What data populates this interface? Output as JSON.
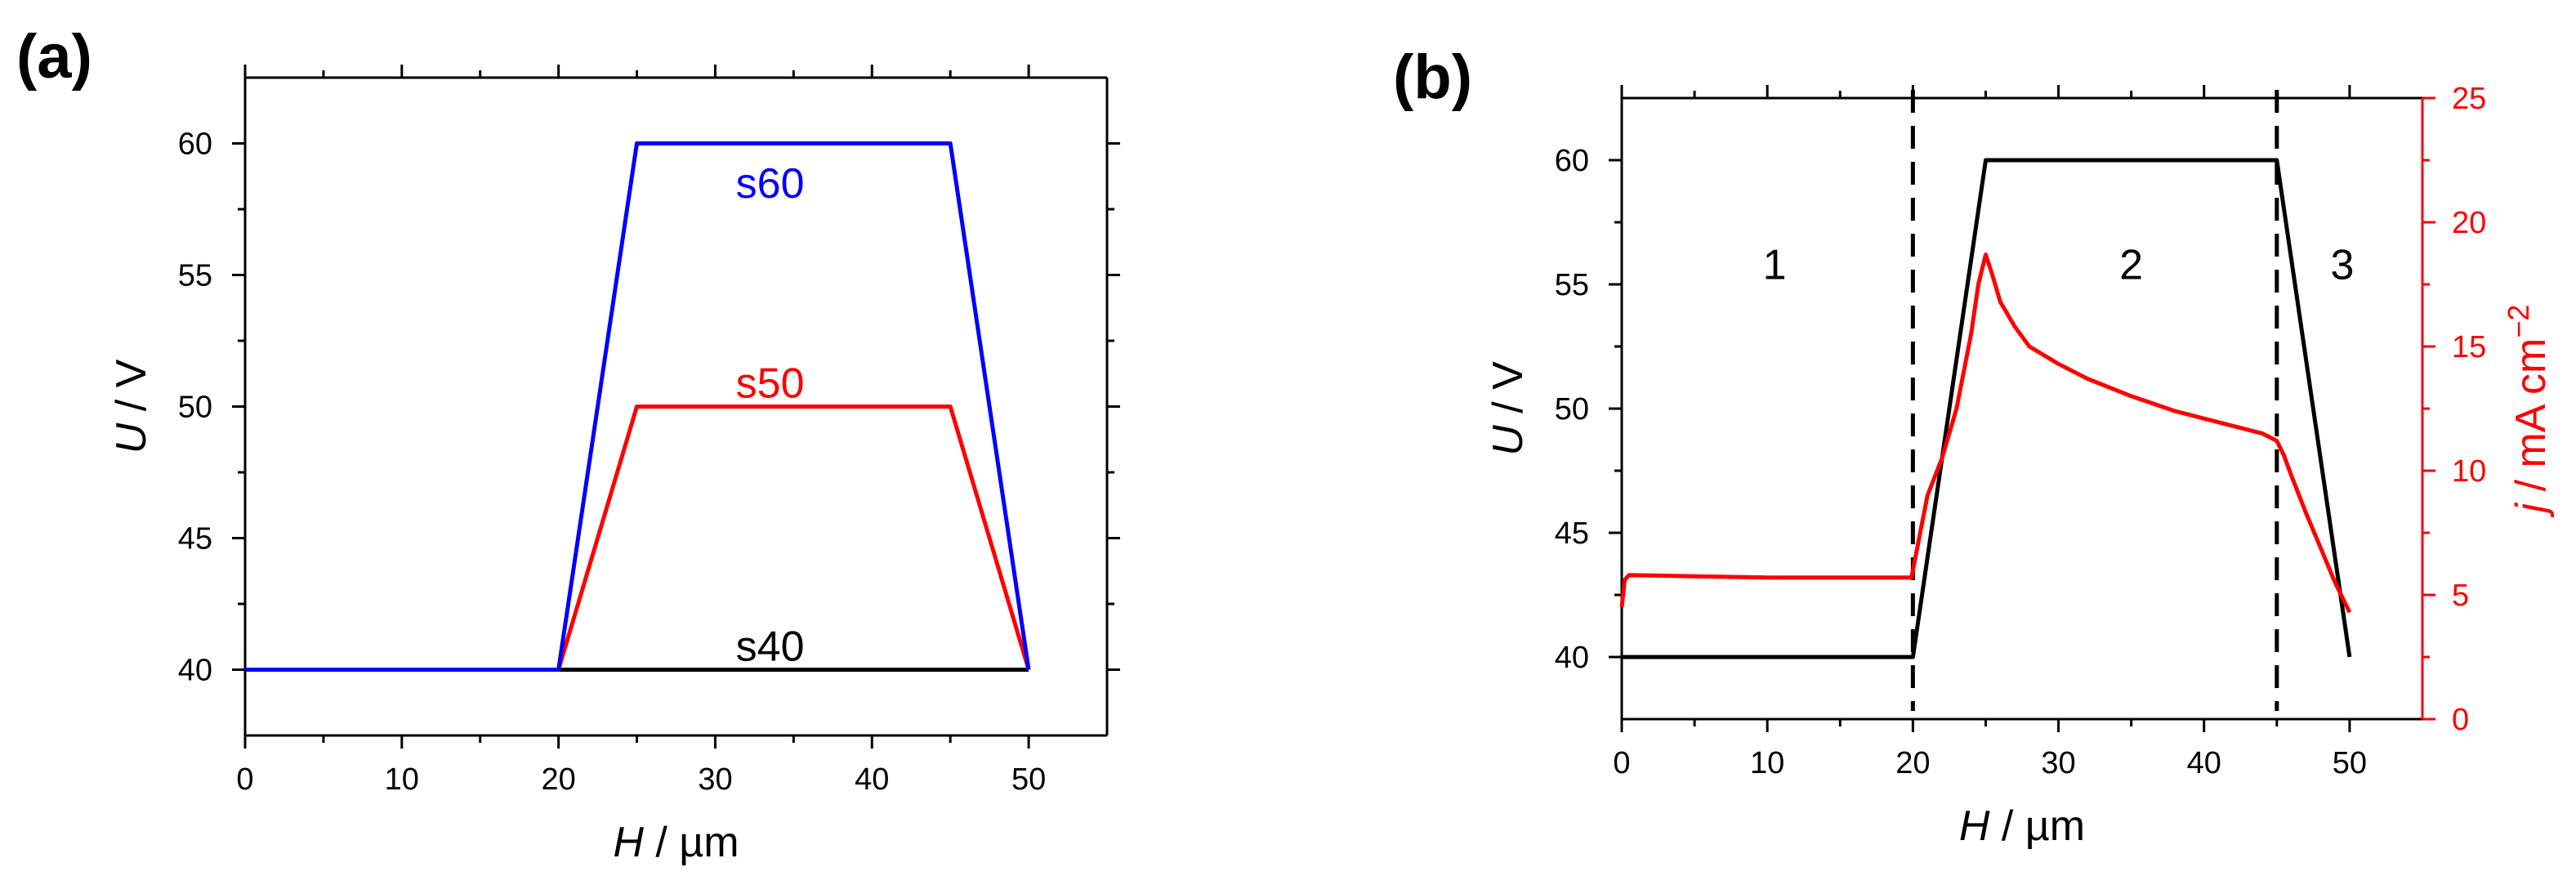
{
  "chart_data": [
    {
      "type": "line",
      "panel_label": "(a)",
      "xlabel_var": "H",
      "xlabel_unit": " / µm",
      "ylabel_var": "U",
      "ylabel_unit": " / V",
      "xlim": [
        0,
        55
      ],
      "ylim": [
        37.5,
        62.5
      ],
      "xticks": [
        0,
        10,
        20,
        30,
        40,
        50
      ],
      "yticks": [
        40,
        45,
        50,
        55,
        60
      ],
      "grid": false,
      "series": [
        {
          "name": "s40",
          "color": "#000000",
          "x": [
            0,
            20,
            50
          ],
          "y": [
            40,
            40,
            40
          ],
          "label_x": 33.5,
          "label_y": 40.9
        },
        {
          "name": "s50",
          "color": "#ff0000",
          "x": [
            0,
            20,
            25,
            45,
            50
          ],
          "y": [
            40,
            40,
            50,
            50,
            40
          ],
          "label_x": 33.5,
          "label_y": 50.9
        },
        {
          "name": "s60",
          "color": "#0000ff",
          "x": [
            0,
            20,
            25,
            45,
            50
          ],
          "y": [
            40,
            40,
            60,
            60,
            40
          ],
          "label_x": 33.5,
          "label_y": 58.5
        }
      ]
    },
    {
      "type": "line",
      "panel_label": "(b)",
      "xlabel_var": "H",
      "xlabel_unit": " / µm",
      "ylabel_var": "U",
      "ylabel_unit": " / V",
      "y2label_var": "j",
      "y2label_unit": " / mA cm",
      "y2label_sup": "−2",
      "xlim": [
        0,
        55
      ],
      "ylim": [
        37.5,
        62.5
      ],
      "y2lim": [
        0,
        25
      ],
      "xticks": [
        0,
        10,
        20,
        30,
        40,
        50
      ],
      "yticks": [
        40,
        45,
        50,
        55,
        60
      ],
      "y2ticks": [
        0,
        5,
        10,
        15,
        20,
        25
      ],
      "grid": false,
      "y2color": "#ff0000",
      "vlines": [
        20,
        45
      ],
      "regions": [
        {
          "label": "1",
          "x": 10.5,
          "y": 55.8
        },
        {
          "label": "2",
          "x": 35,
          "y": 55.8
        },
        {
          "label": "3",
          "x": 49.5,
          "y": 55.8
        }
      ],
      "series": [
        {
          "name": "",
          "axis": "left",
          "color": "#000000",
          "x": [
            0,
            20,
            25,
            45,
            50
          ],
          "y": [
            40,
            40,
            60,
            60,
            40
          ]
        },
        {
          "name": "",
          "axis": "right",
          "color": "#ff0000",
          "x": [
            0,
            0.2,
            0.5,
            5,
            10,
            15,
            19.9,
            20,
            20.5,
            21,
            22,
            23,
            24,
            24.5,
            25,
            25.5,
            26,
            27,
            28,
            30,
            32,
            35,
            38,
            40,
            42,
            44,
            45,
            45.5,
            46,
            47,
            48,
            49,
            50
          ],
          "y": [
            4.5,
            5.6,
            5.8,
            5.75,
            5.7,
            5.7,
            5.7,
            6.0,
            7.5,
            9.0,
            10.5,
            12.5,
            15.5,
            17.5,
            18.7,
            17.8,
            16.8,
            15.8,
            15.0,
            14.3,
            13.7,
            13.0,
            12.4,
            12.1,
            11.8,
            11.5,
            11.2,
            10.6,
            9.8,
            8.3,
            6.9,
            5.5,
            4.3
          ]
        }
      ]
    }
  ]
}
